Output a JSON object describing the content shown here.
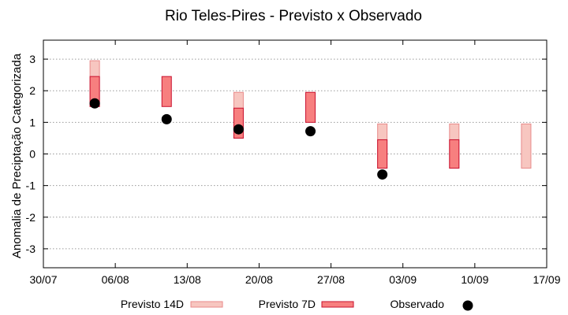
{
  "chart_data": {
    "type": "bar",
    "title": "Rio Teles-Pires - Previsto x Observado",
    "xlabel": "",
    "ylabel": "Anomalia de Preciptação Categorizada",
    "x_range": [
      "2024-07-30",
      "2024-09-17"
    ],
    "ylim": [
      -3.6,
      3.6
    ],
    "x_tick_labels": [
      "30/07",
      "06/08",
      "13/08",
      "20/08",
      "27/08",
      "03/09",
      "10/09",
      "17/09"
    ],
    "y_ticks": [
      -3,
      -2,
      -1,
      0,
      1,
      2,
      3
    ],
    "grid": "horizontal dotted",
    "legend_position": "bottom",
    "series": [
      {
        "name": "Previsto 14D",
        "color": "#f7c6c0",
        "stroke": "#e88a8a",
        "ranges": [
          {
            "x": "2024-08-04",
            "low": 1.5,
            "high": 2.95
          },
          {
            "x": "2024-08-18",
            "low": 0.5,
            "high": 1.95
          },
          {
            "x": "2024-09-01",
            "low": -0.45,
            "high": 0.95
          },
          {
            "x": "2024-09-08",
            "low": -0.45,
            "high": 0.95
          },
          {
            "x": "2024-09-15",
            "low": -0.45,
            "high": 0.95
          }
        ]
      },
      {
        "name": "Previsto 7D",
        "color": "#f77f7f",
        "stroke": "#c8102e",
        "ranges": [
          {
            "x": "2024-08-04",
            "low": 1.5,
            "high": 2.45
          },
          {
            "x": "2024-08-11",
            "low": 1.5,
            "high": 2.45
          },
          {
            "x": "2024-08-18",
            "low": 0.5,
            "high": 1.45
          },
          {
            "x": "2024-08-25",
            "low": 1.0,
            "high": 1.95
          },
          {
            "x": "2024-09-01",
            "low": -0.45,
            "high": 0.45
          },
          {
            "x": "2024-09-08",
            "low": -0.45,
            "high": 0.45
          }
        ]
      },
      {
        "name": "Observado",
        "color": "#000000",
        "points": [
          {
            "x": "2024-08-04",
            "y": 1.6
          },
          {
            "x": "2024-08-11",
            "y": 1.1
          },
          {
            "x": "2024-08-18",
            "y": 0.78
          },
          {
            "x": "2024-08-25",
            "y": 0.72
          },
          {
            "x": "2024-09-01",
            "y": -0.65
          }
        ]
      }
    ]
  }
}
